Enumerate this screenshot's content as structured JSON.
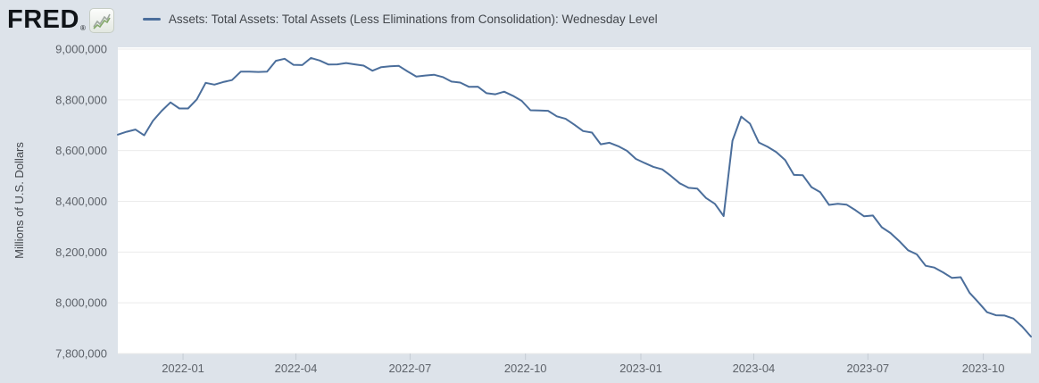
{
  "header": {
    "logo_text": "FRED",
    "logo_reg_mark": "®",
    "legend_label": "Assets: Total Assets: Total Assets (Less Eliminations from Consolidation): Wednesday Level"
  },
  "colors": {
    "page_background": "#dde3ea",
    "plot_background": "#ffffff",
    "series_line": "#4b6e9b",
    "gridline": "#ebebeb",
    "axis_tick_text": "#5d6269",
    "axis_title_text": "#44484d",
    "tick_mark": "#c5ccd3",
    "legend_text": "#42464b",
    "logo_text": "#101418"
  },
  "icons": {
    "logo_chart_icon": "sparkline-icon",
    "legend_marker": "series-line-dash"
  },
  "chart_data": {
    "type": "line",
    "title": "Assets: Total Assets: Total Assets (Less Eliminations from Consolidation): Wednesday Level",
    "xlabel": "",
    "ylabel": "Millions of U.S. Dollars",
    "ylim": [
      7800000,
      9000000
    ],
    "grid": true,
    "legend_position": "top",
    "y_ticks": [
      {
        "value": 9000000,
        "label": "9,000,000"
      },
      {
        "value": 8800000,
        "label": "8,800,000"
      },
      {
        "value": 8600000,
        "label": "8,600,000"
      },
      {
        "value": 8400000,
        "label": "8,400,000"
      },
      {
        "value": 8200000,
        "label": "8,200,000"
      },
      {
        "value": 8000000,
        "label": "8,000,000"
      },
      {
        "value": 7800000,
        "label": "7,800,000"
      }
    ],
    "x_ticks": [
      {
        "date": "2022-01-01",
        "label": "2022-01"
      },
      {
        "date": "2022-04-01",
        "label": "2022-04"
      },
      {
        "date": "2022-07-01",
        "label": "2022-07"
      },
      {
        "date": "2022-10-01",
        "label": "2022-10"
      },
      {
        "date": "2023-01-01",
        "label": "2023-01"
      },
      {
        "date": "2023-04-01",
        "label": "2023-04"
      },
      {
        "date": "2023-07-01",
        "label": "2023-07"
      },
      {
        "date": "2023-10-01",
        "label": "2023-10"
      }
    ],
    "series": [
      {
        "name": "Assets: Total Assets: Total Assets (Less Eliminations from Consolidation): Wednesday Level",
        "units": "Millions of U.S. Dollars",
        "frequency": "weekly-wednesday",
        "start_date": "2021-11-10",
        "end_date": "2023-11-08",
        "values": [
          8663000,
          8674000,
          8683000,
          8660000,
          8717000,
          8757000,
          8790000,
          8766000,
          8766000,
          8802000,
          8867000,
          8860000,
          8870000,
          8878000,
          8911000,
          8911000,
          8910000,
          8911000,
          8954000,
          8962000,
          8938000,
          8937000,
          8965000,
          8955000,
          8939000,
          8940000,
          8945000,
          8940000,
          8935000,
          8915000,
          8929000,
          8932000,
          8934000,
          8912000,
          8892000,
          8896000,
          8899000,
          8890000,
          8872000,
          8868000,
          8851000,
          8852000,
          8826000,
          8822000,
          8832000,
          8816000,
          8796000,
          8759000,
          8758000,
          8757000,
          8735000,
          8725000,
          8702000,
          8677000,
          8671000,
          8625000,
          8631000,
          8617000,
          8599000,
          8567000,
          8551000,
          8536000,
          8526000,
          8500000,
          8471000,
          8453000,
          8450000,
          8413000,
          8390000,
          8342000,
          8639000,
          8734000,
          8706000,
          8632000,
          8615000,
          8594000,
          8563000,
          8504000,
          8503000,
          8456000,
          8436000,
          8386000,
          8390000,
          8387000,
          8365000,
          8341000,
          8344000,
          8298000,
          8275000,
          8243000,
          8207000,
          8191000,
          8146000,
          8139000,
          8120000,
          8098000,
          8101000,
          8040000,
          8002000,
          7963000,
          7951000,
          7950000,
          7938000,
          7906000,
          7867000
        ]
      }
    ]
  }
}
